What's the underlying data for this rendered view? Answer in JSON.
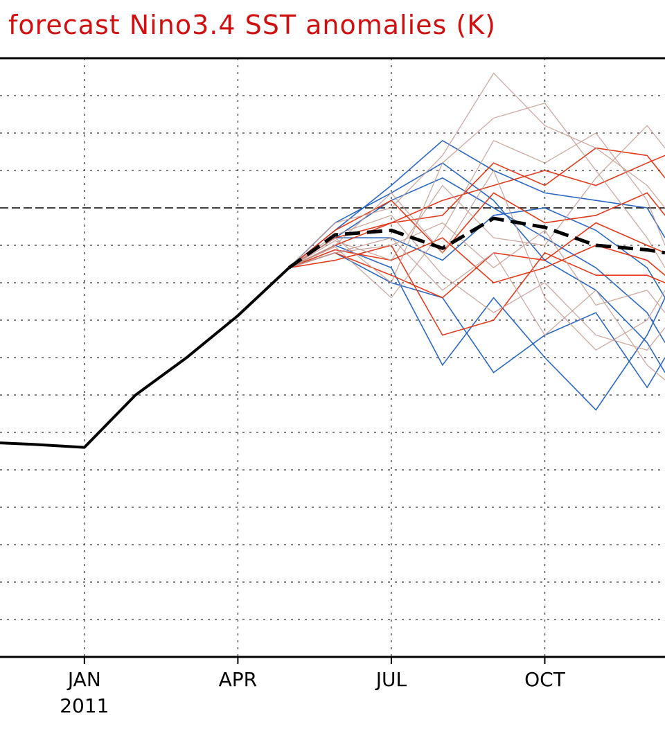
{
  "chart_data": {
    "type": "line",
    "title": "forecast Nino3.4 SST anomalies (K)",
    "xlabel": "",
    "ylabel": "",
    "x_tick_labels": [
      {
        "label": "JAN",
        "sublabel": "2011",
        "month_index": 3
      },
      {
        "label": "APR",
        "sublabel": "",
        "month_index": 6
      },
      {
        "label": "JUL",
        "sublabel": "",
        "month_index": 9
      },
      {
        "label": "OCT",
        "sublabel": "",
        "month_index": 12
      }
    ],
    "grid": true,
    "y_zero_line": 0,
    "xlim": [
      1.35,
      14.35
    ],
    "ylim": [
      -3.0,
      1.0
    ],
    "observed": {
      "x": [
        1.35,
        2,
        3,
        4,
        5,
        6,
        7
      ],
      "y": [
        -1.57,
        -1.58,
        -1.6,
        -1.25,
        -1.0,
        -0.72,
        -0.4
      ]
    },
    "ensemble_mean": {
      "x": [
        7,
        7.9,
        9,
        10,
        11,
        12,
        13,
        14,
        14.35
      ],
      "y": [
        -0.4,
        -0.18,
        -0.15,
        -0.27,
        -0.07,
        -0.13,
        -0.25,
        -0.28,
        -0.3
      ]
    },
    "members": [
      {
        "color": "#2060c0",
        "y": [
          -0.4,
          -0.15,
          0.15,
          0.45,
          0.25,
          0.1,
          0.05,
          0.0,
          -0.2
        ]
      },
      {
        "color": "#2060c0",
        "y": [
          -0.4,
          -0.2,
          0.05,
          0.2,
          0.0,
          -0.2,
          -0.4,
          -0.7,
          -0.9
        ]
      },
      {
        "color": "#2060c0",
        "y": [
          -0.4,
          -0.25,
          -0.4,
          -1.05,
          -0.6,
          -1.0,
          -1.35,
          -0.85,
          -0.6
        ]
      },
      {
        "color": "#2060c0",
        "y": [
          -0.4,
          -0.1,
          0.1,
          0.3,
          0.05,
          -0.35,
          -0.55,
          -0.9,
          -1.1
        ]
      },
      {
        "color": "#2060c0",
        "y": [
          -0.4,
          -0.3,
          -0.5,
          -0.6,
          -1.1,
          -0.85,
          -0.7,
          -1.2,
          -1.0
        ]
      },
      {
        "color": "#2060c0",
        "y": [
          -0.4,
          -0.2,
          -0.2,
          -0.35,
          -0.05,
          0.0,
          -0.15,
          -0.4,
          -0.6
        ]
      },
      {
        "color": "#e03010",
        "y": [
          -0.4,
          -0.3,
          -0.45,
          -0.6,
          -0.3,
          -0.35,
          -0.1,
          -0.25,
          -0.3
        ]
      },
      {
        "color": "#e03010",
        "y": [
          -0.4,
          -0.25,
          -0.1,
          0.05,
          0.15,
          0.25,
          0.15,
          0.3,
          0.35
        ]
      },
      {
        "color": "#e03010",
        "y": [
          -0.4,
          -0.35,
          -0.25,
          -0.85,
          -0.75,
          -0.3,
          -0.45,
          -0.45,
          -0.5
        ]
      },
      {
        "color": "#e03010",
        "y": [
          -0.4,
          -0.2,
          -0.1,
          -0.05,
          0.3,
          0.15,
          0.4,
          0.35,
          0.2
        ]
      },
      {
        "color": "#e03010",
        "y": [
          -0.4,
          -0.28,
          -0.35,
          -0.2,
          -0.5,
          -0.4,
          -0.25,
          -0.35,
          -0.45
        ]
      },
      {
        "color": "#e03010",
        "y": [
          -0.4,
          -0.15,
          0.05,
          -0.3,
          0.1,
          -0.1,
          -0.05,
          0.1,
          -0.05
        ]
      },
      {
        "color": "#c49a90",
        "y": [
          -0.4,
          -0.1,
          0.0,
          0.35,
          0.9,
          0.55,
          0.4,
          0.15,
          0.0
        ]
      },
      {
        "color": "#c49a90",
        "y": [
          -0.4,
          -0.2,
          -0.5,
          0.3,
          0.6,
          0.7,
          0.25,
          -0.2,
          -0.4
        ]
      },
      {
        "color": "#c49a90",
        "y": [
          -0.4,
          -0.25,
          0.1,
          -0.3,
          0.25,
          -0.6,
          -0.95,
          -0.75,
          -0.55
        ]
      },
      {
        "color": "#c49a90",
        "y": [
          -0.4,
          -0.3,
          -0.2,
          -0.55,
          -0.3,
          -0.85,
          -0.55,
          -1.05,
          -1.15
        ]
      },
      {
        "color": "#c49a90",
        "y": [
          -0.4,
          -0.22,
          -0.35,
          0.15,
          -0.2,
          -0.25,
          0.2,
          0.55,
          0.4
        ]
      },
      {
        "color": "#c49a90",
        "y": [
          -0.4,
          -0.18,
          -0.05,
          -0.45,
          -0.7,
          -0.5,
          -0.85,
          -0.95,
          -0.8
        ]
      },
      {
        "color": "#c49a90",
        "y": [
          -0.4,
          -0.26,
          -0.6,
          -0.15,
          0.45,
          0.3,
          0.5,
          0.05,
          -0.25
        ]
      },
      {
        "color": "#c49a90",
        "y": [
          -0.4,
          -0.3,
          -0.25,
          -0.1,
          -0.4,
          -0.15,
          -0.65,
          -0.55,
          -0.7
        ]
      }
    ],
    "series_colors": {
      "observed": "#000000",
      "ensemble_mean": "#000000"
    }
  }
}
